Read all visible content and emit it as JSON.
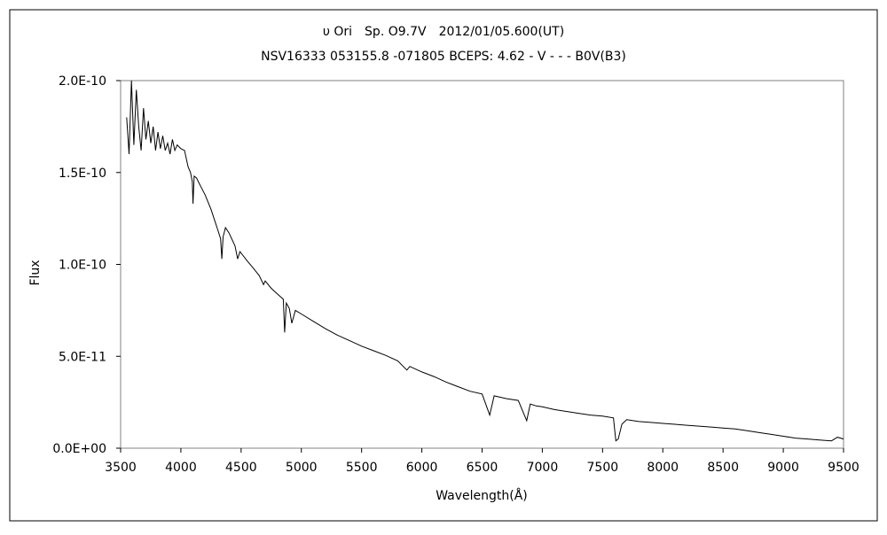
{
  "chart_data": {
    "type": "line",
    "title": "υ Ori　Sp. O9.7V　2012/01/05.600(UT)",
    "subtitle": "NSV16333 053155.8 -071805 BCEPS: 4.62 - V - - - B0V(B3)",
    "xlabel": "Wavelength(Å)",
    "ylabel": "Flux",
    "xlim": [
      3500,
      9500
    ],
    "ylim": [
      0,
      2e-10
    ],
    "xticks": [
      3500,
      4000,
      4500,
      5000,
      5500,
      6000,
      6500,
      7000,
      7500,
      8000,
      8500,
      9000,
      9500
    ],
    "xtick_labels": [
      "3500",
      "4000",
      "4500",
      "5000",
      "5500",
      "6000",
      "6500",
      "7000",
      "7500",
      "8000",
      "8500",
      "9000",
      "9500"
    ],
    "yticks": [
      0,
      5e-11,
      1e-10,
      1.5e-10,
      2e-10
    ],
    "ytick_labels": [
      "0.0E+00",
      "5.0E-11",
      "1.0E-10",
      "1.5E-10",
      "2.0E-10"
    ],
    "grid": false,
    "legend": "none",
    "line_color": "#000000",
    "series": [
      {
        "x": [
          3550,
          3570,
          3590,
          3610,
          3630,
          3650,
          3670,
          3690,
          3710,
          3730,
          3750,
          3770,
          3790,
          3810,
          3830,
          3850,
          3870,
          3890,
          3910,
          3930,
          3950,
          3970,
          4000,
          4030,
          4060,
          4080,
          4095,
          4101,
          4110,
          4130,
          4160,
          4200,
          4250,
          4300,
          4330,
          4340,
          4350,
          4370,
          4400,
          4450,
          4471,
          4490,
          4550,
          4600,
          4650,
          4686,
          4700,
          4750,
          4800,
          4850,
          4861,
          4875,
          4900,
          4921,
          4950,
          5000,
          5100,
          5200,
          5300,
          5400,
          5500,
          5600,
          5700,
          5800,
          5876,
          5900,
          6000,
          6100,
          6200,
          6300,
          6400,
          6500,
          6563,
          6600,
          6700,
          6800,
          6870,
          6900,
          6950,
          7000,
          7100,
          7200,
          7300,
          7400,
          7500,
          7590,
          7610,
          7630,
          7660,
          7700,
          7800,
          7900,
          8000,
          8100,
          8200,
          8300,
          8400,
          8500,
          8600,
          8700,
          8800,
          8900,
          9000,
          9100,
          9200,
          9300,
          9400,
          9450,
          9500
        ],
        "y": [
          1.8e-10,
          1.6e-10,
          2e-10,
          1.65e-10,
          1.95e-10,
          1.75e-10,
          1.62e-10,
          1.85e-10,
          1.68e-10,
          1.78e-10,
          1.66e-10,
          1.75e-10,
          1.62e-10,
          1.72e-10,
          1.63e-10,
          1.7e-10,
          1.62e-10,
          1.66e-10,
          1.6e-10,
          1.68e-10,
          1.62e-10,
          1.65e-10,
          1.63e-10,
          1.62e-10,
          1.53e-10,
          1.5e-10,
          1.45e-10,
          1.33e-10,
          1.48e-10,
          1.47e-10,
          1.43e-10,
          1.38e-10,
          1.3e-10,
          1.2e-10,
          1.14e-10,
          1.03e-10,
          1.15e-10,
          1.2e-10,
          1.17e-10,
          1.1e-10,
          1.03e-10,
          1.07e-10,
          1.02e-10,
          9.8e-11,
          9.4e-11,
          8.9e-11,
          9.1e-11,
          8.7e-11,
          8.4e-11,
          8.1e-11,
          6.3e-11,
          7.9e-11,
          7.6e-11,
          6.8e-11,
          7.5e-11,
          7.3e-11,
          6.9e-11,
          6.5e-11,
          6.15e-11,
          5.85e-11,
          5.55e-11,
          5.3e-11,
          5.05e-11,
          4.75e-11,
          4.25e-11,
          4.45e-11,
          4.15e-11,
          3.9e-11,
          3.6e-11,
          3.35e-11,
          3.1e-11,
          2.95e-11,
          1.8e-11,
          2.85e-11,
          2.7e-11,
          2.6e-11,
          1.5e-11,
          2.4e-11,
          2.3e-11,
          2.25e-11,
          2.1e-11,
          2e-11,
          1.9e-11,
          1.8e-11,
          1.75e-11,
          1.65e-11,
          4e-12,
          5e-12,
          1.3e-11,
          1.55e-11,
          1.45e-11,
          1.4e-11,
          1.35e-11,
          1.3e-11,
          1.25e-11,
          1.2e-11,
          1.15e-11,
          1.1e-11,
          1.05e-11,
          9.5e-12,
          8.5e-12,
          7.5e-12,
          6.5e-12,
          5.5e-12,
          5e-12,
          4.5e-12,
          4e-12,
          6e-12,
          5e-12
        ]
      }
    ]
  }
}
